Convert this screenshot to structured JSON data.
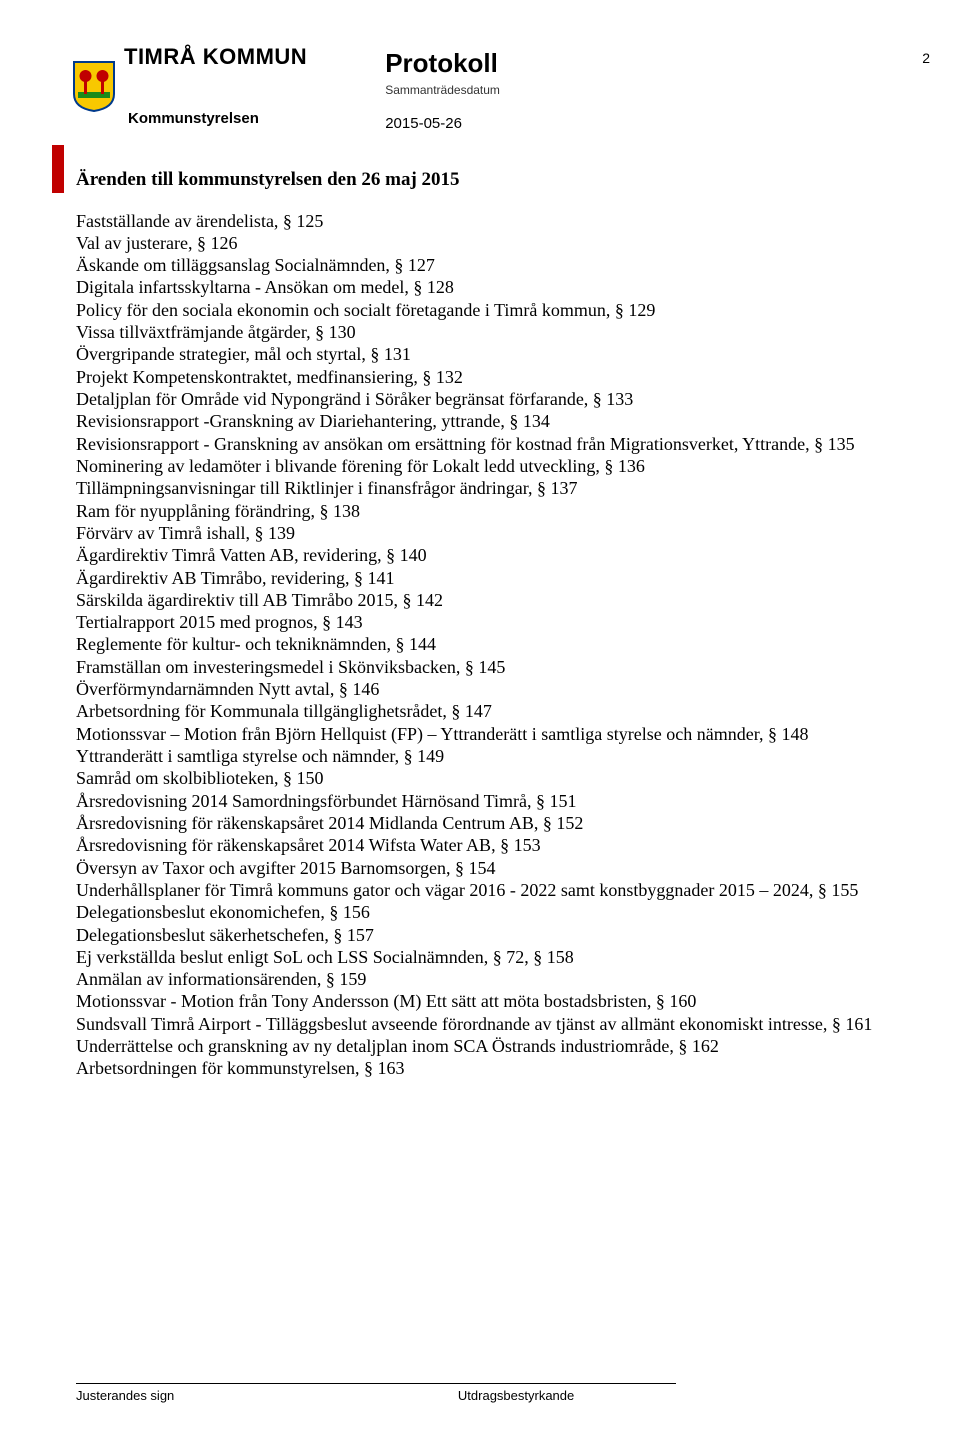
{
  "header": {
    "org_name": "TIMRÅ KOMMUN",
    "protokoll": "Protokoll",
    "subdate_label": "Sammanträdesdatum",
    "date": "2015-05-26",
    "board": "Kommunstyrelsen",
    "page_number": "2"
  },
  "logo": {
    "shield_bg": "#f8c800",
    "shield_border": "#003a8c",
    "tree_color": "#c00000",
    "ground_color": "#1a8a1a"
  },
  "content": {
    "title": "Ärenden till kommunstyrelsen den 26 maj 2015",
    "items": [
      "Fastställande av ärendelista, § 125",
      "Val av justerare, § 126",
      "Äskande om tilläggsanslag Socialnämnden, § 127",
      "Digitala infartsskyltarna - Ansökan om medel, § 128",
      "Policy för den sociala ekonomin och socialt företagande i Timrå kommun, § 129",
      "Vissa tillväxtfrämjande åtgärder, § 130",
      "Övergripande strategier, mål och styrtal, § 131",
      "Projekt Kompetenskontraktet, medfinansiering, § 132",
      "Detaljplan för Område vid Nypongränd i Söråker begränsat förfarande, § 133",
      "Revisionsrapport -Granskning av Diariehantering, yttrande, § 134",
      "Revisionsrapport - Granskning av ansökan om ersättning för kostnad från Migrationsverket, Yttrande, § 135",
      "Nominering av ledamöter i blivande förening för Lokalt ledd utveckling, § 136",
      "Tillämpningsanvisningar till Riktlinjer i finansfrågor ändringar, § 137",
      "Ram för nyupplåning förändring, § 138",
      "Förvärv av Timrå ishall, § 139",
      "Ägardirektiv Timrå Vatten AB, revidering, § 140",
      "Ägardirektiv AB Timråbo, revidering, § 141",
      "Särskilda ägardirektiv till AB Timråbo 2015, § 142",
      "Tertialrapport 2015 med prognos, § 143",
      "Reglemente för kultur- och tekniknämnden, § 144",
      "Framställan om investeringsmedel i Skönviksbacken, § 145",
      "Överförmyndarnämnden Nytt avtal, § 146",
      "Arbetsordning för Kommunala tillgänglighetsrådet, § 147",
      "Motionssvar – Motion från Björn Hellquist (FP) – Yttranderätt i samtliga styrelse och nämnder, § 148",
      "Yttranderätt i samtliga styrelse och nämnder, § 149",
      "Samråd om skolbiblioteken, § 150",
      "Årsredovisning 2014 Samordningsförbundet Härnösand Timrå, § 151",
      "Årsredovisning för räkenskapsåret 2014 Midlanda Centrum AB, § 152",
      "Årsredovisning för räkenskapsåret 2014 Wifsta Water AB, § 153",
      "Översyn av Taxor och avgifter 2015 Barnomsorgen, § 154",
      "Underhållsplaner för Timrå kommuns gator och vägar 2016 - 2022 samt konstbyggnader 2015 – 2024, § 155",
      "Delegationsbeslut ekonomichefen, § 156",
      "Delegationsbeslut säkerhetschefen, § 157",
      "Ej verkställda beslut enligt SoL och LSS Socialnämnden, § 72, § 158",
      "Anmälan av informationsärenden, § 159",
      "Motionssvar - Motion från Tony Andersson (M) Ett sätt att möta bostadsbristen, § 160",
      "Sundsvall Timrå Airport - Tilläggsbeslut avseende förordnande av tjänst av allmänt ekonomiskt intresse, § 161",
      "Underrättelse och granskning av ny detaljplan inom SCA Östrands industriområde, § 162",
      "Arbetsordningen för kommunstyrelsen, § 163"
    ]
  },
  "footer": {
    "left": "Justerandes sign",
    "right": "Utdragsbestyrkande"
  }
}
